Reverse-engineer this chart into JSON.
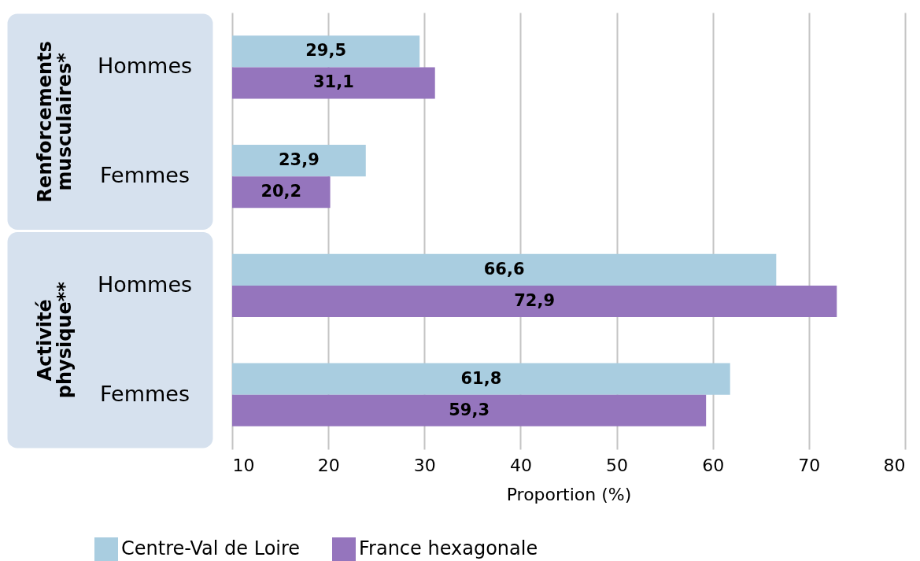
{
  "chart_data": {
    "type": "bar",
    "orientation": "horizontal",
    "xlabel": "Proportion (%)",
    "categories": [
      "Hommes",
      "Femmes",
      "Hommes",
      "Femmes"
    ],
    "annotations": [
      "Renforcements musculaires*",
      "Activité physique**"
    ],
    "series": [
      {
        "name": "Centre-Val de Loire",
        "color": "#a9cde0",
        "values": [
          29.5,
          23.9,
          66.6,
          61.8
        ],
        "value_labels": [
          "29,5",
          "23,9",
          "66,6",
          "61,8"
        ]
      },
      {
        "name": "France hexagonale",
        "color": "#9575bd",
        "values": [
          31.1,
          20.2,
          72.9,
          59.3
        ],
        "value_labels": [
          "31,1",
          "20,2",
          "72,9",
          "59,3"
        ]
      }
    ],
    "xlim": [
      10,
      80
    ],
    "xticks": [
      10,
      20,
      30,
      40,
      50,
      60,
      70,
      80
    ],
    "grid": "x",
    "legend": "bottom"
  }
}
